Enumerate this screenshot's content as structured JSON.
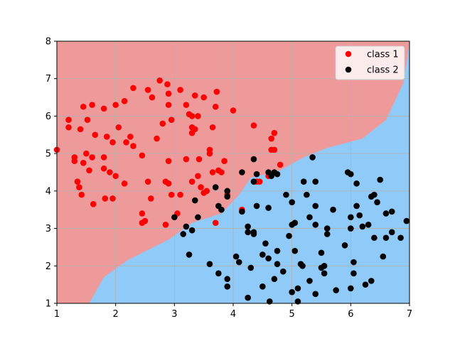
{
  "chart_data": {
    "type": "scatter",
    "title": "",
    "xlabel": "",
    "ylabel": "",
    "xlim": [
      1,
      7
    ],
    "ylim": [
      1,
      8
    ],
    "xticks": [
      "1",
      "2",
      "3",
      "4",
      "5",
      "6",
      "7"
    ],
    "yticks": [
      "1",
      "2",
      "3",
      "4",
      "5",
      "6",
      "7",
      "8"
    ],
    "grid": true,
    "legend_position": "top-right",
    "background_regions": {
      "class_1_color": "#ef9a9a",
      "class_2_color": "#90caf9",
      "boundary": [
        [
          1.55,
          1.0
        ],
        [
          1.8,
          1.7
        ],
        [
          2.2,
          2.15
        ],
        [
          2.9,
          2.7
        ],
        [
          3.3,
          3.15
        ],
        [
          3.8,
          3.4
        ],
        [
          4.1,
          3.9
        ],
        [
          4.3,
          4.35
        ],
        [
          4.8,
          4.55
        ],
        [
          5.2,
          4.9
        ],
        [
          5.6,
          5.15
        ],
        [
          6.2,
          5.4
        ],
        [
          6.6,
          5.9
        ],
        [
          6.9,
          6.9
        ],
        [
          7.0,
          8.0
        ]
      ]
    },
    "series": [
      {
        "name": "class 1",
        "color": "#ff0000",
        "points": [
          [
            1.0,
            5.1
          ],
          [
            1.2,
            5.7
          ],
          [
            1.2,
            5.9
          ],
          [
            1.3,
            4.9
          ],
          [
            1.3,
            4.8
          ],
          [
            1.35,
            4.25
          ],
          [
            1.38,
            4.1
          ],
          [
            1.42,
            3.9
          ],
          [
            1.4,
            5.65
          ],
          [
            1.45,
            6.25
          ],
          [
            1.45,
            4.75
          ],
          [
            1.5,
            5.0
          ],
          [
            1.52,
            5.9
          ],
          [
            1.55,
            4.55
          ],
          [
            1.6,
            6.3
          ],
          [
            1.6,
            4.9
          ],
          [
            1.62,
            3.65
          ],
          [
            1.65,
            5.5
          ],
          [
            1.8,
            6.2
          ],
          [
            1.8,
            4.9
          ],
          [
            1.8,
            4.6
          ],
          [
            1.82,
            3.8
          ],
          [
            1.85,
            5.45
          ],
          [
            1.9,
            4.5
          ],
          [
            1.95,
            3.8
          ],
          [
            1.95,
            5.3
          ],
          [
            2.0,
            6.3
          ],
          [
            2.0,
            4.4
          ],
          [
            2.05,
            5.7
          ],
          [
            2.15,
            4.2
          ],
          [
            2.15,
            6.4
          ],
          [
            2.18,
            5.3
          ],
          [
            2.25,
            5.45
          ],
          [
            2.3,
            6.75
          ],
          [
            2.3,
            5.2
          ],
          [
            2.45,
            3.4
          ],
          [
            2.45,
            4.95
          ],
          [
            2.45,
            3.15
          ],
          [
            2.5,
            3.2
          ],
          [
            2.55,
            4.25
          ],
          [
            2.55,
            6.7
          ],
          [
            2.6,
            3.8
          ],
          [
            2.62,
            6.5
          ],
          [
            2.7,
            5.4
          ],
          [
            2.75,
            6.95
          ],
          [
            2.8,
            5.8
          ],
          [
            2.85,
            4.25
          ],
          [
            2.85,
            3.1
          ],
          [
            2.88,
            6.85
          ],
          [
            2.9,
            6.3
          ],
          [
            2.9,
            6.6
          ],
          [
            2.9,
            4.8
          ],
          [
            2.9,
            4.2
          ],
          [
            2.95,
            5.9
          ],
          [
            2.95,
            3.9
          ],
          [
            3.05,
            3.4
          ],
          [
            3.1,
            3.9
          ],
          [
            3.1,
            6.7
          ],
          [
            3.2,
            4.85
          ],
          [
            3.2,
            6.3
          ],
          [
            3.25,
            6.05
          ],
          [
            3.3,
            6.0
          ],
          [
            3.3,
            5.55
          ],
          [
            3.3,
            5.7
          ],
          [
            3.3,
            4.25
          ],
          [
            3.35,
            6.55
          ],
          [
            3.35,
            5.65
          ],
          [
            3.4,
            6.0
          ],
          [
            3.4,
            4.4
          ],
          [
            3.42,
            4.85
          ],
          [
            3.45,
            4.1
          ],
          [
            3.5,
            6.5
          ],
          [
            3.5,
            3.95
          ],
          [
            3.55,
            4.0
          ],
          [
            3.6,
            5.1
          ],
          [
            3.6,
            5.0
          ],
          [
            3.65,
            5.7
          ],
          [
            3.65,
            4.5
          ],
          [
            3.7,
            3.15
          ],
          [
            3.7,
            6.25
          ],
          [
            3.72,
            6.65
          ],
          [
            3.75,
            4.55
          ],
          [
            3.8,
            4.5
          ],
          [
            3.85,
            4.8
          ],
          [
            3.9,
            3.9
          ],
          [
            4.0,
            6.15
          ],
          [
            4.15,
            3.5
          ],
          [
            4.35,
            5.75
          ],
          [
            4.4,
            4.25
          ],
          [
            4.45,
            4.25
          ],
          [
            4.6,
            4.4
          ],
          [
            4.65,
            5.1
          ],
          [
            4.65,
            5.4
          ],
          [
            4.7,
            5.55
          ],
          [
            4.7,
            5.1
          ],
          [
            4.8,
            4.7
          ]
        ]
      },
      {
        "name": "class 2",
        "color": "#000000",
        "points": [
          [
            3.0,
            3.3
          ],
          [
            3.15,
            2.85
          ],
          [
            3.2,
            3.05
          ],
          [
            3.25,
            2.3
          ],
          [
            3.3,
            2.95
          ],
          [
            3.35,
            3.75
          ],
          [
            3.4,
            3.3
          ],
          [
            3.6,
            2.05
          ],
          [
            3.7,
            4.1
          ],
          [
            3.75,
            3.6
          ],
          [
            3.75,
            1.8
          ],
          [
            3.8,
            3.5
          ],
          [
            3.9,
            1.45
          ],
          [
            3.9,
            1.65
          ],
          [
            3.9,
            4.0
          ],
          [
            3.9,
            3.85
          ],
          [
            4.05,
            2.25
          ],
          [
            4.1,
            2.1
          ],
          [
            4.15,
            3.45
          ],
          [
            4.15,
            4.5
          ],
          [
            4.25,
            2.9
          ],
          [
            4.25,
            3.05
          ],
          [
            4.25,
            1.15
          ],
          [
            4.3,
            1.95
          ],
          [
            4.35,
            2.9
          ],
          [
            4.35,
            2.85
          ],
          [
            4.35,
            4.25
          ],
          [
            4.35,
            4.85
          ],
          [
            4.4,
            3.6
          ],
          [
            4.4,
            4.45
          ],
          [
            4.5,
            2.3
          ],
          [
            4.5,
            1.45
          ],
          [
            4.55,
            2.6
          ],
          [
            4.6,
            4.5
          ],
          [
            4.6,
            2.2
          ],
          [
            4.6,
            3.55
          ],
          [
            4.62,
            1.05
          ],
          [
            4.65,
            4.4
          ],
          [
            4.7,
            4.5
          ],
          [
            4.7,
            1.65
          ],
          [
            4.75,
            2.4
          ],
          [
            4.75,
            2.05
          ],
          [
            4.75,
            4.45
          ],
          [
            4.85,
            1.85
          ],
          [
            4.9,
            3.9
          ],
          [
            4.95,
            2.8
          ],
          [
            5.0,
            1.3
          ],
          [
            5.0,
            3.1
          ],
          [
            5.0,
            3.7
          ],
          [
            5.05,
            3.15
          ],
          [
            5.05,
            2.4
          ],
          [
            5.1,
            1.05
          ],
          [
            5.1,
            1.4
          ],
          [
            5.15,
            2.05
          ],
          [
            5.18,
            2.0
          ],
          [
            5.2,
            4.25
          ],
          [
            5.25,
            3.9
          ],
          [
            5.3,
            1.6
          ],
          [
            5.3,
            3.3
          ],
          [
            5.35,
            4.9
          ],
          [
            5.4,
            3.6
          ],
          [
            5.4,
            3.1
          ],
          [
            5.4,
            4.25
          ],
          [
            5.4,
            1.25
          ],
          [
            5.5,
            1.95
          ],
          [
            5.5,
            2.35
          ],
          [
            5.55,
            1.8
          ],
          [
            5.55,
            2.0
          ],
          [
            5.6,
            3.0
          ],
          [
            5.6,
            2.85
          ],
          [
            5.7,
            3.5
          ],
          [
            5.75,
            1.35
          ],
          [
            5.9,
            2.55
          ],
          [
            5.95,
            4.5
          ],
          [
            6.0,
            4.45
          ],
          [
            6.0,
            1.4
          ],
          [
            6.0,
            3.3
          ],
          [
            6.0,
            3.0
          ],
          [
            6.05,
            1.8
          ],
          [
            6.05,
            2.1
          ],
          [
            6.1,
            4.2
          ],
          [
            6.1,
            3.6
          ],
          [
            6.15,
            3.35
          ],
          [
            6.2,
            3.05
          ],
          [
            6.25,
            1.5
          ],
          [
            6.3,
            3.1
          ],
          [
            6.35,
            3.85
          ],
          [
            6.35,
            1.6
          ],
          [
            6.4,
            3.9
          ],
          [
            6.4,
            2.75
          ],
          [
            6.45,
            3.7
          ],
          [
            6.5,
            4.3
          ],
          [
            6.55,
            2.25
          ],
          [
            6.6,
            3.4
          ],
          [
            6.6,
            2.75
          ],
          [
            6.7,
            3.45
          ],
          [
            6.7,
            2.9
          ],
          [
            6.85,
            2.75
          ],
          [
            6.95,
            3.2
          ]
        ]
      }
    ]
  }
}
